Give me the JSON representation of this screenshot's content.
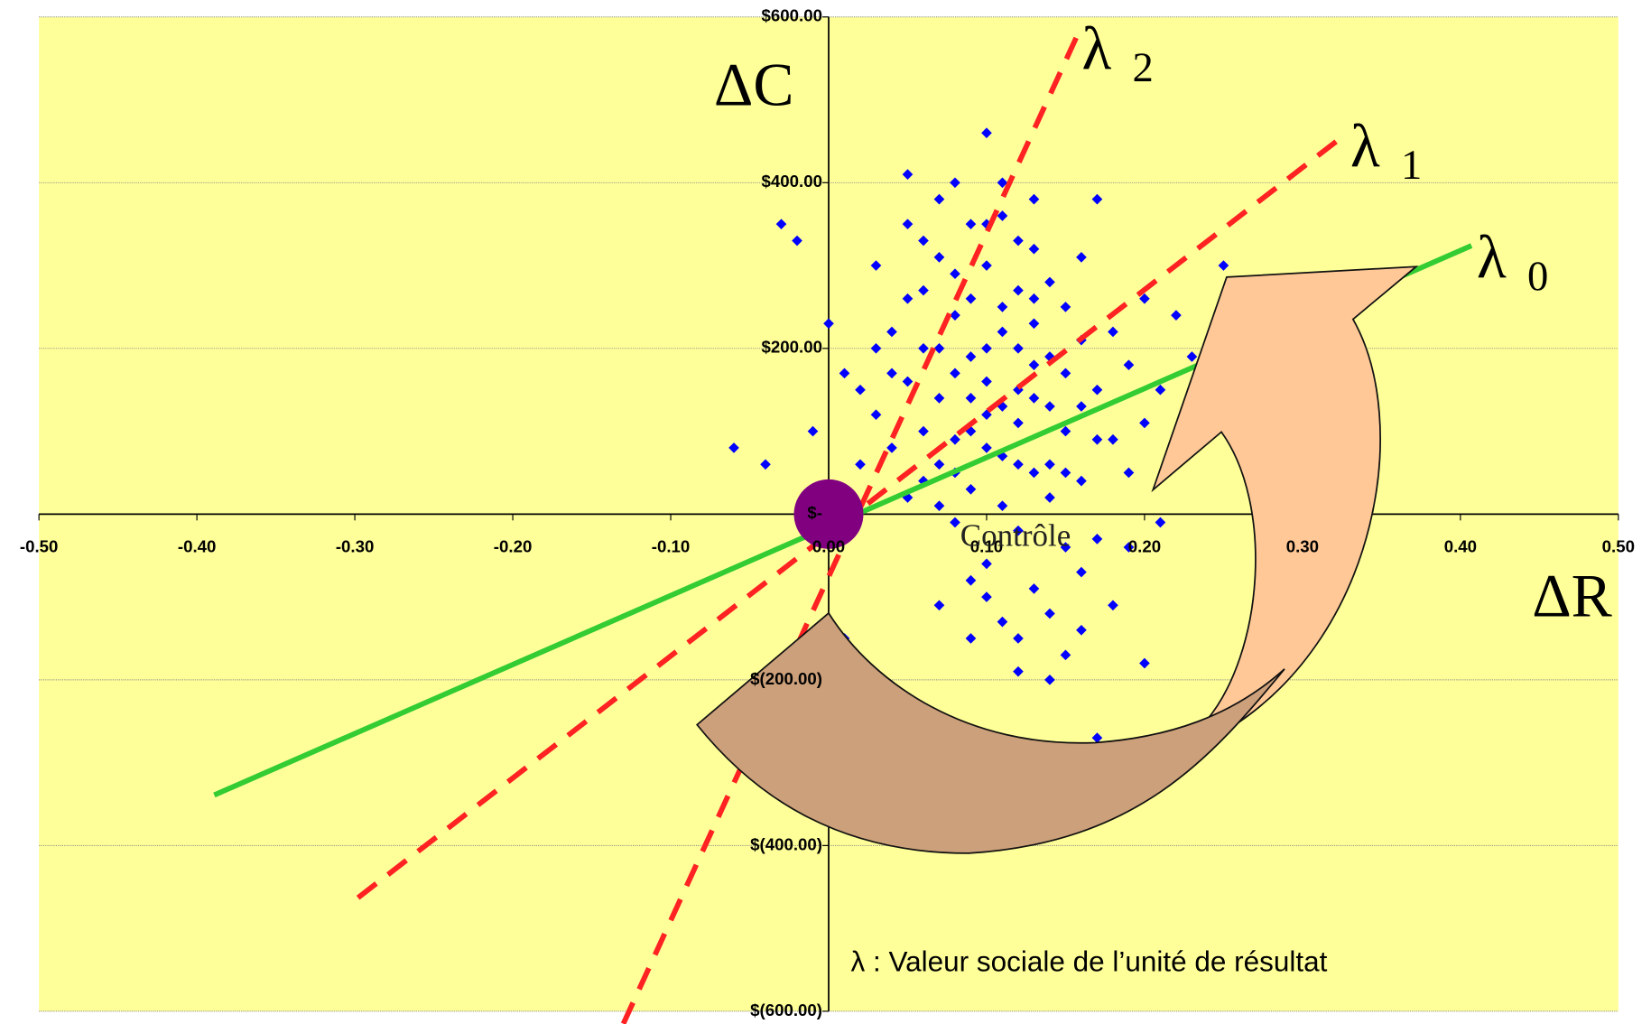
{
  "chart_data": {
    "type": "scatter",
    "x_label": "ΔR",
    "y_label": "ΔC",
    "caption": "λ : Valeur  sociale de l’unité de résultat",
    "xlim": [
      -0.5,
      0.5
    ],
    "xticks": [
      {
        "value": -0.5,
        "label": "-0.50"
      },
      {
        "value": -0.4,
        "label": "-0.40"
      },
      {
        "value": -0.3,
        "label": "-0.30"
      },
      {
        "value": -0.2,
        "label": "-0.20"
      },
      {
        "value": -0.1,
        "label": "-0.10"
      },
      {
        "value": 0,
        "label": "0.00"
      },
      {
        "value": 0.1,
        "label": "0.10"
      },
      {
        "value": 0.2,
        "label": "0.20"
      },
      {
        "value": 0.3,
        "label": "0.30"
      },
      {
        "value": 0.4,
        "label": "0.40"
      },
      {
        "value": 0.5,
        "label": "0.50"
      }
    ],
    "ylim": [
      -600,
      600
    ],
    "yticks": [
      {
        "value": 600,
        "label": "$600.00"
      },
      {
        "value": 400,
        "label": "$400.00"
      },
      {
        "value": 200,
        "label": "$200.00"
      },
      {
        "value": 0,
        "label": "$-"
      },
      {
        "value": -200,
        "label": "$(200.00)"
      },
      {
        "value": -400,
        "label": "$(400.00)"
      },
      {
        "value": -600,
        "label": "$(600.00)"
      }
    ],
    "grid": true,
    "background": "#ffff99",
    "series": [
      {
        "color": "#0000ff",
        "x": [
          0.1,
          0.12,
          0.08,
          0.14,
          0.06,
          0.11,
          0.09,
          0.13,
          0.07,
          0.15,
          0.05,
          0.1,
          0.12,
          0.16,
          0.08,
          0.04,
          0.11,
          0.13,
          0.09,
          0.14,
          0.06,
          0.17,
          0.1,
          0.12,
          0.07,
          0.03,
          0.15,
          0.11,
          0.08,
          0.18,
          0.05,
          0.13,
          0.09,
          0.16,
          0.1,
          0.12,
          0.07,
          0.14,
          0.06,
          0.11,
          0.19,
          0.02,
          0.13,
          0.09,
          0.15,
          0.08,
          0.17,
          0.04,
          0.12,
          0.1,
          0.14,
          0.11,
          0.07,
          0.16,
          0.05,
          0.13,
          0.09,
          0.18,
          0.03,
          0.12,
          0.1,
          0.15,
          0.08,
          0.2,
          0.06,
          0.14,
          0.11,
          0.02,
          0.17,
          0.09,
          0.13,
          0.07,
          0.19,
          0.1,
          0.12,
          0.05,
          0.16,
          0.08,
          0.15,
          0.11,
          0.04,
          0.13,
          0.09,
          0.21,
          0.06,
          0.14,
          0.1,
          0.18,
          0.07,
          0.12,
          0.2,
          0.03,
          0.15,
          0.11,
          0.16,
          0.08,
          0.13,
          0.1,
          0.05,
          0.17,
          -0.03,
          -0.02,
          -0.06,
          -0.04,
          0.01,
          0.0,
          -0.01,
          0.22,
          0.23,
          0.25,
          0.17,
          0.01,
          0.19,
          0.21,
          0.14,
          0.09,
          0.07,
          0.12,
          0.16,
          0.2
        ],
        "values": [
          120,
          150,
          90,
          60,
          200,
          250,
          30,
          180,
          140,
          100,
          160,
          300,
          -20,
          210,
          240,
          80,
          70,
          320,
          190,
          130,
          40,
          150,
          -60,
          270,
          310,
          120,
          -40,
          360,
          -10,
          90,
          260,
          230,
          100,
          40,
          200,
          110,
          60,
          280,
          330,
          10,
          180,
          150,
          -90,
          350,
          250,
          170,
          -30,
          220,
          60,
          160,
          -120,
          400,
          380,
          310,
          20,
          140,
          -80,
          220,
          300,
          200,
          80,
          170,
          290,
          260,
          100,
          20,
          -130,
          60,
          90,
          260,
          380,
          200,
          -40,
          350,
          -150,
          350,
          130,
          50,
          -170,
          220,
          170,
          50,
          140,
          150,
          270,
          190,
          -100,
          -110,
          10,
          330,
          -180,
          200,
          50,
          130,
          -70,
          400,
          260,
          460,
          410,
          380,
          350,
          330,
          80,
          60,
          170,
          230,
          100,
          240,
          190,
          300,
          -270,
          -150,
          50,
          -10,
          -200,
          -150,
          -110,
          -190,
          -140,
          110
        ]
      }
    ],
    "reference_lines": [
      {
        "symbol": "λ",
        "subscript": "0",
        "color": "#33cc33",
        "dashed": false,
        "x": [
          -0.389,
          0.407
        ],
        "y": [
          -339,
          324
        ]
      },
      {
        "symbol": "λ",
        "subscript": "1",
        "color": "#ff2222",
        "dashed": true,
        "x": [
          -0.298,
          0.327
        ],
        "y": [
          -463,
          458
        ]
      },
      {
        "symbol": "λ",
        "subscript": "2",
        "color": "#ff2222",
        "dashed": true,
        "x": [
          -0.13,
          0.157
        ],
        "y": [
          -615,
          576
        ]
      }
    ],
    "reference_point": {
      "label": "Contrôle",
      "x": 0,
      "y": 0,
      "color": "#800080"
    }
  }
}
